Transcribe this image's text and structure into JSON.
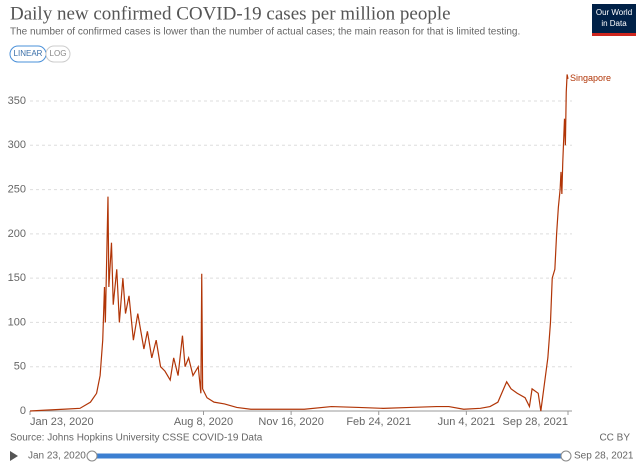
{
  "chart_data": {
    "type": "line",
    "title": "Daily new confirmed COVID-19 cases per million people",
    "subtitle": "The number of confirmed cases is lower than the number of actual cases; the main reason for that is limited testing.",
    "logo": [
      "Our World",
      "in Data"
    ],
    "scale_buttons": [
      "LINEAR",
      "LOG"
    ],
    "log_scale": false,
    "grid": true,
    "source": "Source: Johns Hopkins University CSSE COVID-19 Data",
    "license": "CC BY",
    "timeline": [
      "Jan 23, 2020",
      "Sep 28, 2021"
    ],
    "x": [
      "2020-01-23",
      "2020-02-10",
      "2020-03-01",
      "2020-03-20",
      "2020-04-01",
      "2020-04-08",
      "2020-04-12",
      "2020-04-15",
      "2020-04-17",
      "2020-04-18",
      "2020-04-21",
      "2020-04-22",
      "2020-04-25",
      "2020-04-27",
      "2020-05-01",
      "2020-05-04",
      "2020-05-08",
      "2020-05-11",
      "2020-05-15",
      "2020-05-20",
      "2020-05-25",
      "2020-06-01",
      "2020-06-05",
      "2020-06-10",
      "2020-06-15",
      "2020-06-20",
      "2020-06-25",
      "2020-07-01",
      "2020-07-05",
      "2020-07-10",
      "2020-07-15",
      "2020-07-18",
      "2020-07-22",
      "2020-07-27",
      "2020-08-02",
      "2020-08-05",
      "2020-08-06",
      "2020-08-07",
      "2020-08-12",
      "2020-08-20",
      "2020-09-01",
      "2020-09-15",
      "2020-10-01",
      "2020-11-01",
      "2020-12-01",
      "2021-01-01",
      "2021-02-01",
      "2021-03-01",
      "2021-04-01",
      "2021-05-01",
      "2021-05-15",
      "2021-06-01",
      "2021-06-20",
      "2021-07-01",
      "2021-07-10",
      "2021-07-20",
      "2021-07-25",
      "2021-08-01",
      "2021-08-10",
      "2021-08-15",
      "2021-08-18",
      "2021-08-25",
      "2021-08-28",
      "2021-09-01",
      "2021-09-05",
      "2021-09-08",
      "2021-09-10",
      "2021-09-13",
      "2021-09-15",
      "2021-09-17",
      "2021-09-19",
      "2021-09-20",
      "2021-09-21",
      "2021-09-22",
      "2021-09-24",
      "2021-09-25",
      "2021-09-26",
      "2021-09-27",
      "2021-09-28"
    ],
    "series": [
      {
        "name": "Singapore",
        "color": "#b13507",
        "values": [
          0,
          1,
          2,
          3,
          10,
          20,
          40,
          80,
          140,
          100,
          242,
          140,
          190,
          120,
          160,
          100,
          150,
          110,
          130,
          80,
          110,
          70,
          90,
          60,
          80,
          50,
          45,
          35,
          60,
          40,
          85,
          50,
          60,
          40,
          50,
          20,
          155,
          25,
          15,
          10,
          8,
          4,
          2,
          2,
          2,
          5,
          4,
          3,
          4,
          5,
          5,
          2,
          3,
          5,
          10,
          33,
          25,
          20,
          15,
          5,
          25,
          20,
          0,
          30,
          60,
          100,
          150,
          160,
          200,
          230,
          250,
          270,
          245,
          280,
          330,
          300,
          360,
          380,
          375
        ]
      }
    ],
    "ylim": [
      0,
      385
    ],
    "yticks": [
      0,
      50,
      100,
      150,
      200,
      250,
      300,
      350
    ],
    "xlim": [
      "2020-01-23",
      "2021-09-28"
    ],
    "xticks": [
      {
        "value": "2020-01-23",
        "label": "Jan 23, 2020"
      },
      {
        "value": "2020-08-08",
        "label": "Aug 8, 2020"
      },
      {
        "value": "2020-11-16",
        "label": "Nov 16, 2020"
      },
      {
        "value": "2021-02-24",
        "label": "Feb 24, 2021"
      },
      {
        "value": "2021-06-04",
        "label": "Jun 4, 2021"
      },
      {
        "value": "2021-09-28",
        "label": "Sep 28, 2021"
      }
    ]
  }
}
